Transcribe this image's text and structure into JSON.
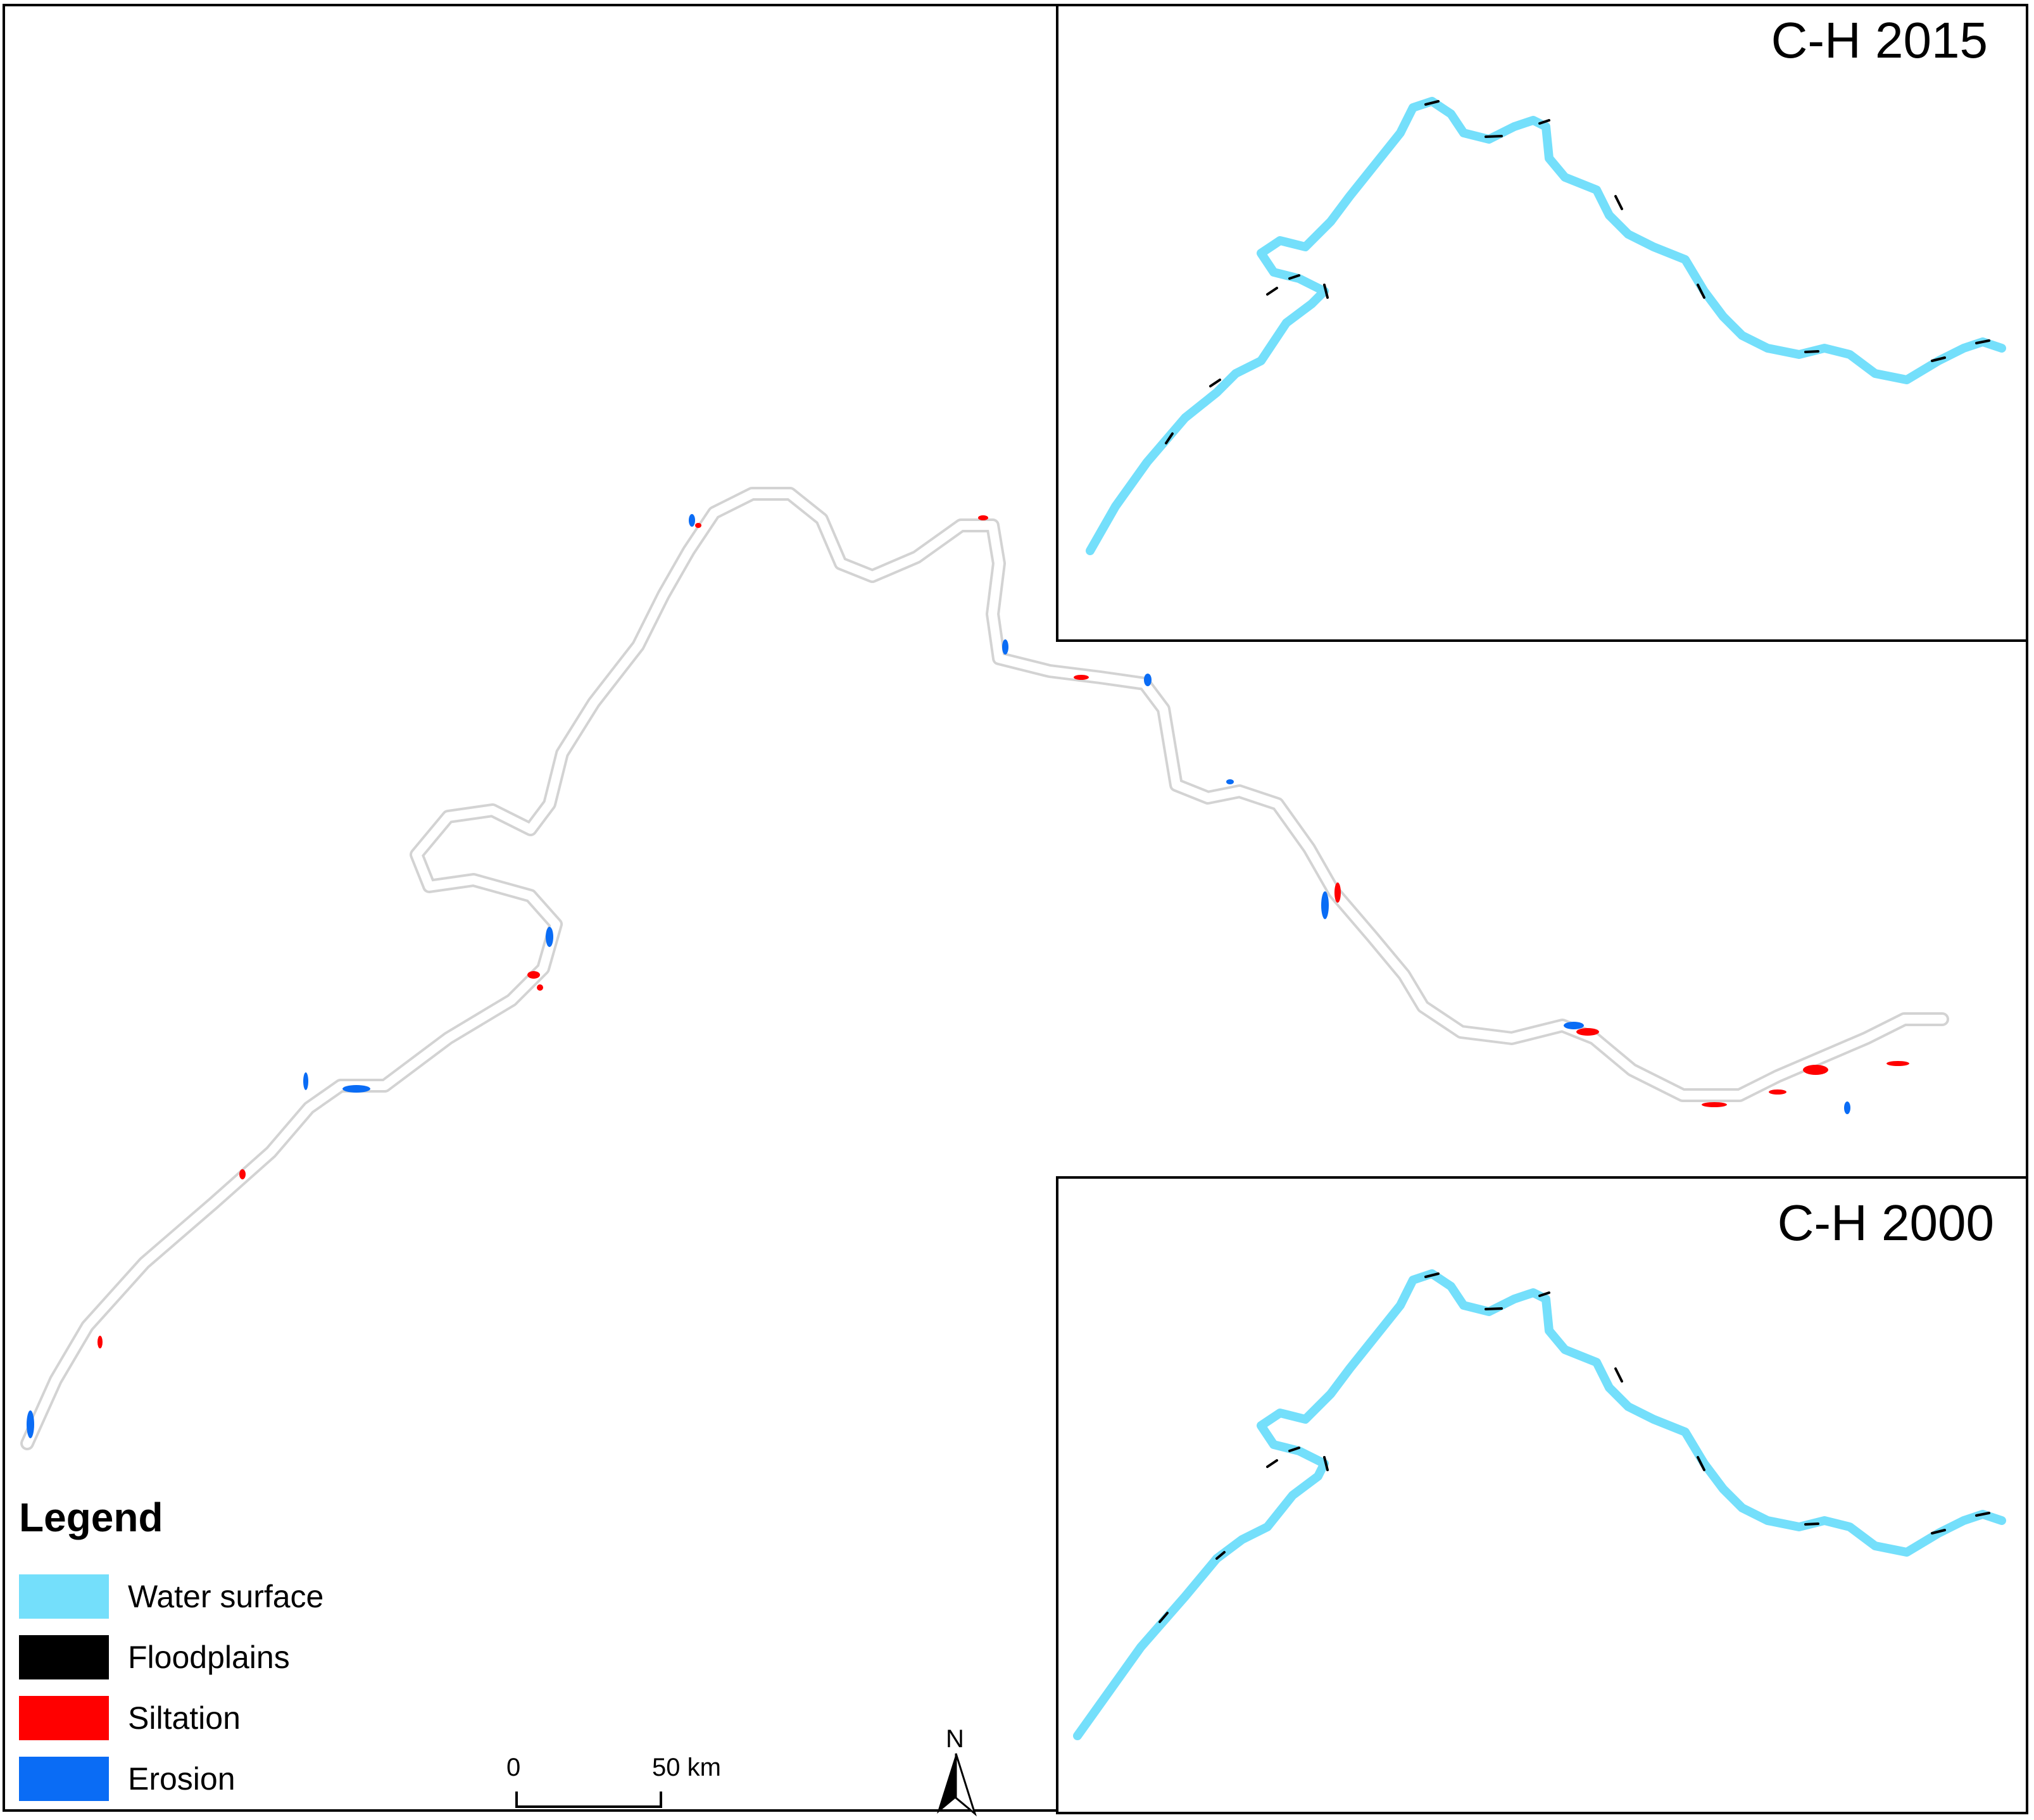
{
  "inset_top": {
    "title": "C-H 2015"
  },
  "inset_bottom": {
    "title": "C-H 2000"
  },
  "legend": {
    "title": "Legend",
    "items": [
      {
        "label": "Water surface",
        "color": "#74DFFB"
      },
      {
        "label": "Floodplains",
        "color": "#000000"
      },
      {
        "label": "Siltation",
        "color": "#FF0000"
      },
      {
        "label": "Erosion",
        "color": "#0A6CF5"
      }
    ]
  },
  "scale_bar": {
    "start_label": "0",
    "end_label": "50 km"
  },
  "north_arrow": {
    "label": "N",
    "icon": "north-arrow-icon"
  },
  "colors": {
    "river_outline": "#cfcfcf",
    "water": "#74DFFB",
    "floodplain": "#000000",
    "siltation": "#FF0000",
    "erosion": "#0A6CF5"
  }
}
